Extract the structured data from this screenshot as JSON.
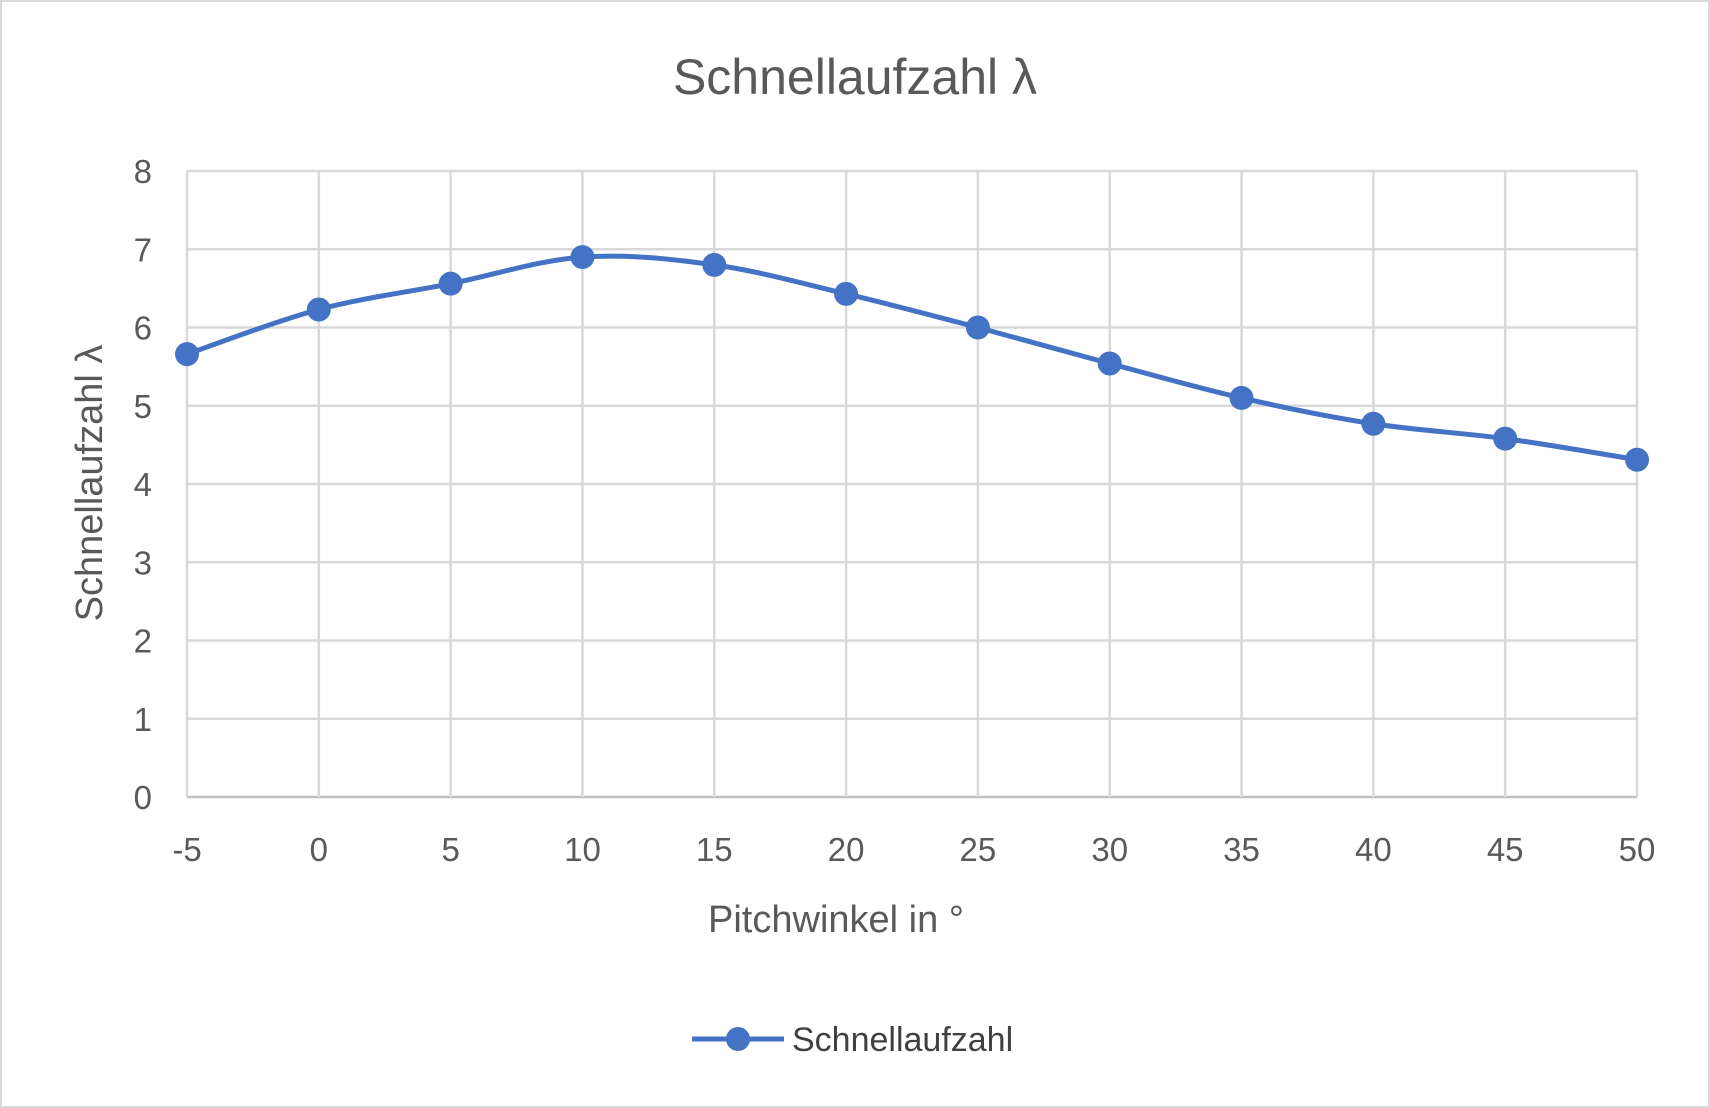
{
  "chart_data": {
    "type": "line",
    "title": "Schnellaufzahl λ",
    "xlabel": "Pitchwinkel in °",
    "ylabel": "Schnellaufzahl λ",
    "x": [
      -5,
      0,
      5,
      10,
      15,
      20,
      25,
      30,
      35,
      40,
      45,
      50
    ],
    "series": [
      {
        "name": "Schnellaufzahl",
        "color": "#4472c4",
        "values": [
          5.66,
          6.23,
          6.56,
          6.9,
          6.8,
          6.43,
          6.0,
          5.54,
          5.1,
          4.77,
          4.58,
          4.31
        ]
      }
    ],
    "xticks": [
      "-5",
      "0",
      "5",
      "10",
      "15",
      "20",
      "25",
      "30",
      "35",
      "40",
      "45",
      "50"
    ],
    "yticks": [
      "0",
      "1",
      "2",
      "3",
      "4",
      "5",
      "6",
      "7",
      "8"
    ],
    "xlim": [
      -5,
      50
    ],
    "ylim": [
      0,
      8
    ],
    "grid": true,
    "smooth": true,
    "legend": "bottom"
  }
}
